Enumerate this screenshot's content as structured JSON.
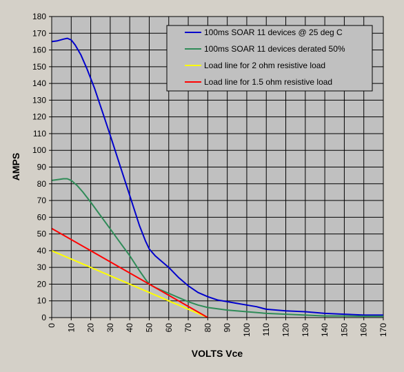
{
  "chart_data": {
    "type": "line",
    "title": "",
    "xlabel": "VOLTS Vce",
    "ylabel": "AMPS",
    "xlim": [
      0,
      170
    ],
    "ylim": [
      0,
      180
    ],
    "x_ticks": [
      0,
      10,
      20,
      30,
      40,
      50,
      60,
      70,
      80,
      90,
      100,
      110,
      120,
      130,
      140,
      150,
      160,
      170
    ],
    "y_ticks": [
      0,
      10,
      20,
      30,
      40,
      50,
      60,
      70,
      80,
      90,
      100,
      110,
      120,
      130,
      140,
      150,
      160,
      170,
      180
    ],
    "grid": true,
    "plot_background": "#c0c0c0",
    "legend_position": "top-right",
    "series": [
      {
        "name": "100ms SOAR 11 devices @ 25 deg C",
        "color": "#0000cc",
        "points": [
          [
            0,
            165
          ],
          [
            3,
            165.5
          ],
          [
            6,
            166.5
          ],
          [
            8,
            167
          ],
          [
            10,
            166
          ],
          [
            12,
            163
          ],
          [
            15,
            157
          ],
          [
            18,
            149
          ],
          [
            22,
            137
          ],
          [
            26,
            123
          ],
          [
            30,
            109
          ],
          [
            35,
            91
          ],
          [
            40,
            73
          ],
          [
            45,
            55
          ],
          [
            48,
            46
          ],
          [
            50,
            41
          ],
          [
            53,
            37
          ],
          [
            56,
            34
          ],
          [
            60,
            30
          ],
          [
            65,
            24
          ],
          [
            70,
            19
          ],
          [
            75,
            15
          ],
          [
            80,
            12.5
          ],
          [
            85,
            10.5
          ],
          [
            90,
            9.5
          ],
          [
            95,
            8.5
          ],
          [
            100,
            7.5
          ],
          [
            105,
            6.5
          ],
          [
            110,
            5
          ],
          [
            120,
            4
          ],
          [
            130,
            3.5
          ],
          [
            140,
            2.5
          ],
          [
            150,
            2
          ],
          [
            160,
            1.5
          ],
          [
            170,
            1.5
          ]
        ]
      },
      {
        "name": "100ms SOAR 11 devices derated 50%",
        "color": "#2e8b57",
        "points": [
          [
            0,
            82
          ],
          [
            3,
            82.5
          ],
          [
            6,
            83
          ],
          [
            8,
            83
          ],
          [
            10,
            82
          ],
          [
            13,
            79
          ],
          [
            16,
            75
          ],
          [
            20,
            69
          ],
          [
            25,
            61
          ],
          [
            30,
            53
          ],
          [
            35,
            45
          ],
          [
            40,
            37
          ],
          [
            45,
            28
          ],
          [
            48,
            23
          ],
          [
            50,
            20
          ],
          [
            53,
            18
          ],
          [
            56,
            16.5
          ],
          [
            60,
            14.5
          ],
          [
            65,
            12
          ],
          [
            70,
            9.5
          ],
          [
            75,
            7.5
          ],
          [
            80,
            6
          ],
          [
            90,
            4.5
          ],
          [
            100,
            3.5
          ],
          [
            110,
            2.5
          ],
          [
            120,
            2
          ],
          [
            130,
            1.5
          ],
          [
            140,
            1
          ],
          [
            150,
            1
          ],
          [
            160,
            0.8
          ],
          [
            170,
            0.8
          ]
        ]
      },
      {
        "name": "Load line for 2 ohm resistive load",
        "color": "#ffff00",
        "points": [
          [
            0,
            40
          ],
          [
            80,
            0
          ]
        ]
      },
      {
        "name": "Load line for 1.5 ohm resistive load",
        "color": "#ff0000",
        "points": [
          [
            0,
            53.3
          ],
          [
            80,
            0
          ]
        ]
      }
    ]
  }
}
